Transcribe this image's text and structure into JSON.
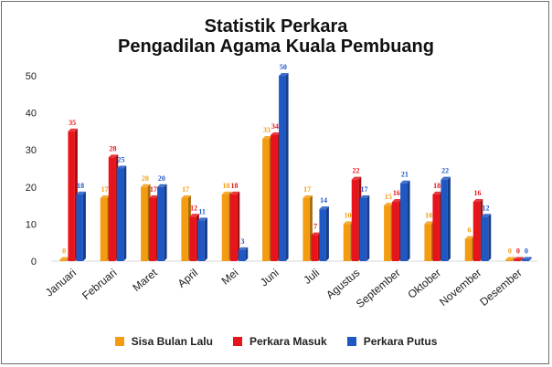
{
  "chart_data": {
    "type": "bar",
    "title": "Statistik Perkara",
    "subtitle": "Pengadilan Agama Kuala Pembuang",
    "categories": [
      "Januari",
      "Februari",
      "Maret",
      "April",
      "Mei",
      "Juni",
      "Juli",
      "Agustus",
      "September",
      "Oktober",
      "November",
      "Desember"
    ],
    "series": [
      {
        "name": "Sisa Bulan Lalu",
        "color": "#f39c12",
        "values": [
          0,
          17,
          20,
          17,
          18,
          33,
          17,
          10,
          15,
          10,
          6,
          0
        ]
      },
      {
        "name": "Perkara Masuk",
        "color": "#e8141b",
        "values": [
          35,
          28,
          17,
          12,
          18,
          34,
          7,
          22,
          16,
          18,
          16,
          0
        ]
      },
      {
        "name": "Perkara Putus",
        "color": "#1f57c3",
        "values": [
          18,
          25,
          20,
          11,
          3,
          50,
          14,
          17,
          21,
          22,
          12,
          0
        ]
      }
    ],
    "ylim": [
      0,
      50
    ],
    "yticks": [
      0,
      10,
      20,
      30,
      40,
      50
    ],
    "grid": false,
    "legend": "bottom"
  }
}
